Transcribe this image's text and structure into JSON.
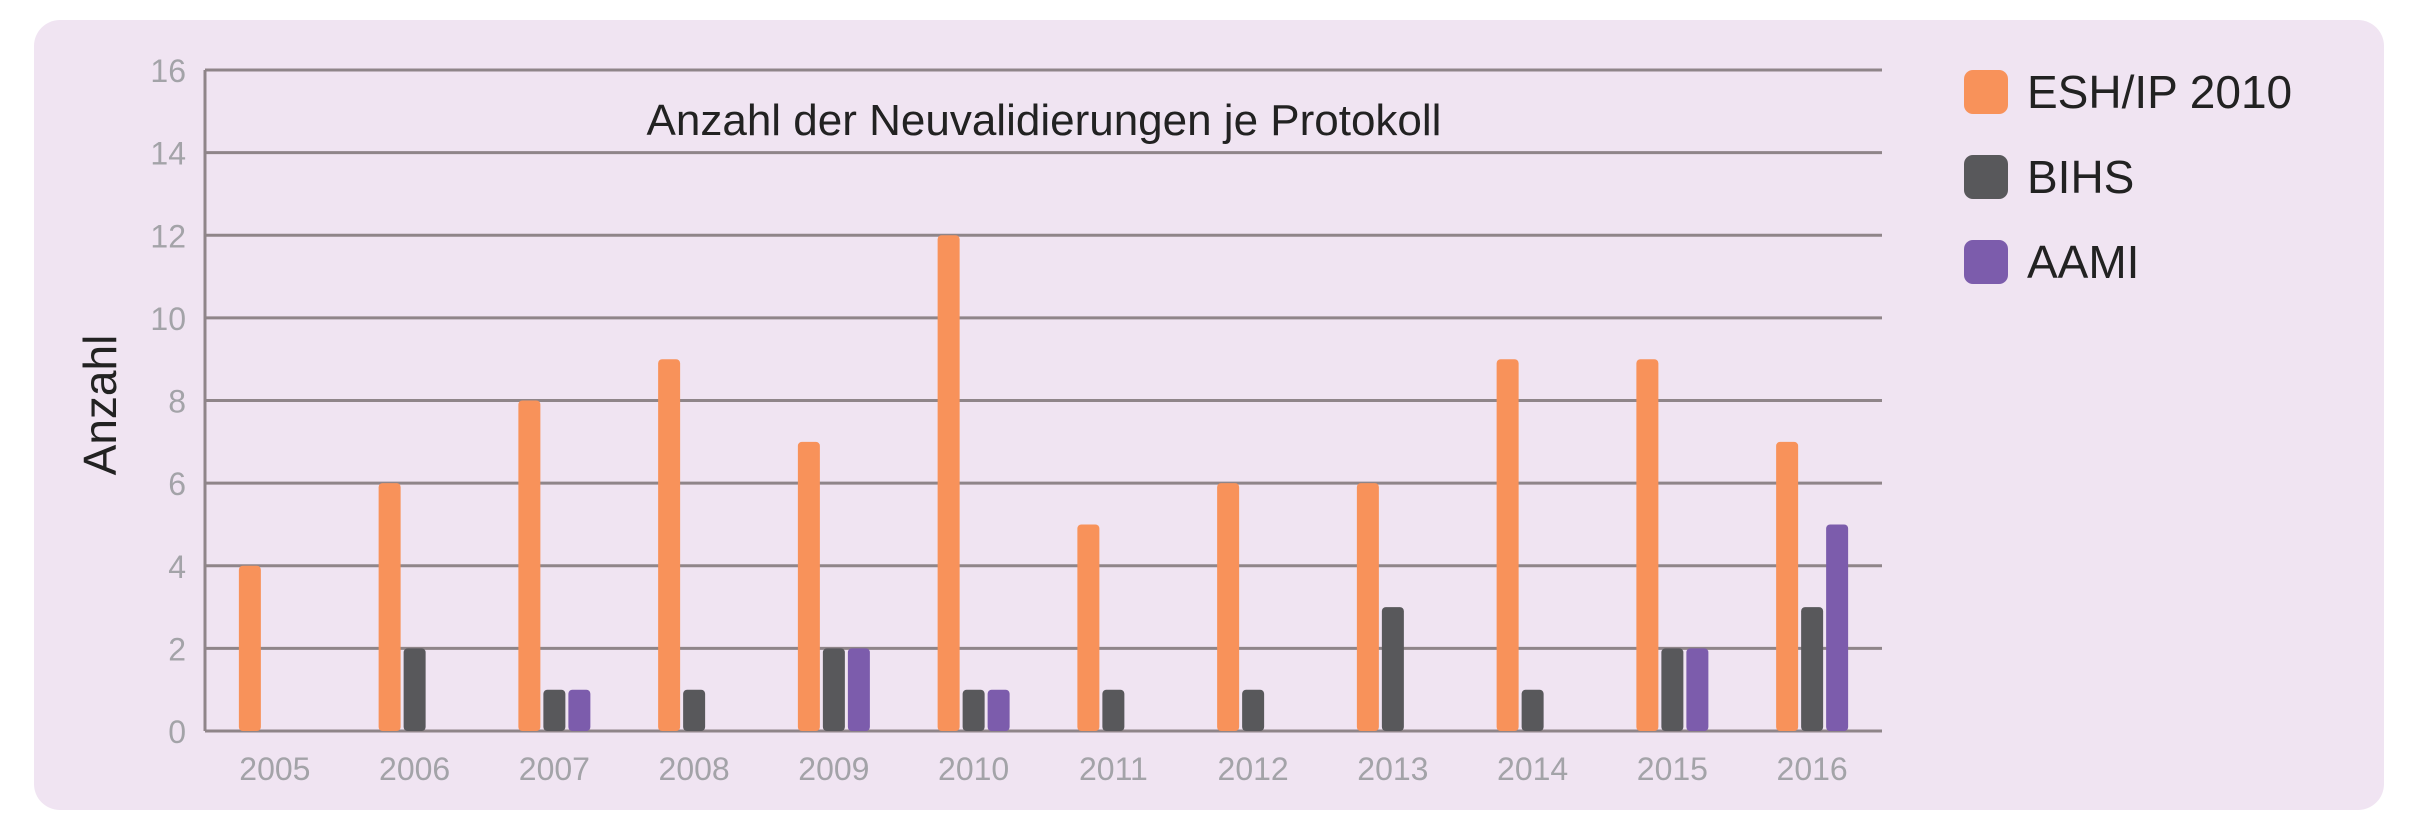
{
  "chart_data": {
    "type": "bar",
    "title": "Anzahl der Neuvalidierungen je Protokoll",
    "xlabel": "",
    "ylabel": "Anzahl",
    "ylim": [
      0,
      16
    ],
    "yticks": [
      0,
      2,
      4,
      6,
      8,
      10,
      12,
      14,
      16
    ],
    "grid": true,
    "legend_position": "right",
    "categories": [
      "2005",
      "2006",
      "2007",
      "2008",
      "2009",
      "2010",
      "2011",
      "2012",
      "2013",
      "2014",
      "2015",
      "2016"
    ],
    "series": [
      {
        "name": "ESH/IP 2010",
        "color": "#f8925a",
        "values": [
          4,
          6,
          8,
          9,
          7,
          12,
          5,
          6,
          6,
          9,
          9,
          7
        ]
      },
      {
        "name": "BIHS",
        "color": "#58585b",
        "values": [
          0,
          2,
          1,
          1,
          2,
          1,
          1,
          1,
          3,
          1,
          2,
          3
        ]
      },
      {
        "name": "AAMI",
        "color": "#7c5cac",
        "values": [
          0,
          0,
          1,
          0,
          2,
          1,
          0,
          0,
          0,
          0,
          2,
          5
        ]
      }
    ]
  }
}
